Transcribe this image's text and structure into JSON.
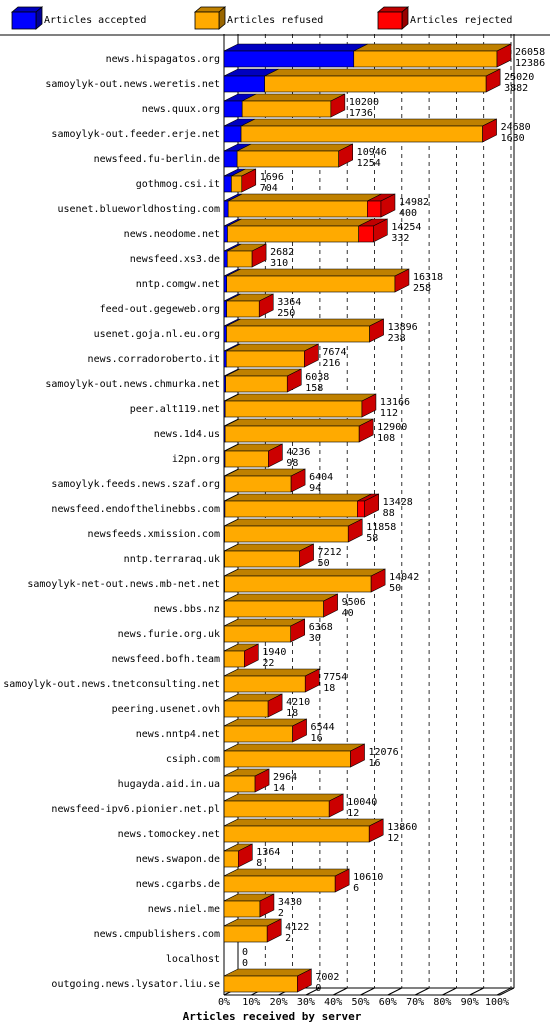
{
  "chart_data": {
    "type": "bar",
    "stacked": true,
    "orientation": "horizontal",
    "title": "Articles received by server",
    "categories": [
      "news.hispagatos.org",
      "samoylyk-out.news.weretis.net",
      "news.quux.org",
      "samoylyk-out.feeder.erje.net",
      "newsfeed.fu-berlin.de",
      "gothmog.csi.it",
      "usenet.blueworldhosting.com",
      "news.neodome.net",
      "newsfeed.xs3.de",
      "nntp.comgw.net",
      "feed-out.gegeweb.org",
      "usenet.goja.nl.eu.org",
      "news.corradoroberto.it",
      "samoylyk-out.news.chmurka.net",
      "peer.alt119.net",
      "news.1d4.us",
      "i2pn.org",
      "samoylyk.feeds.news.szaf.org",
      "newsfeed.endofthelinebbs.com",
      "newsfeeds.xmission.com",
      "nntp.terraraq.uk",
      "samoylyk-net-out.news.mb-net.net",
      "news.bbs.nz",
      "news.furie.org.uk",
      "newsfeed.bofh.team",
      "samoylyk-out.news.tnetconsulting.net",
      "peering.usenet.ovh",
      "news.nntp4.net",
      "csiph.com",
      "hugayda.aid.in.ua",
      "newsfeed-ipv6.pionier.net.pl",
      "news.tomockey.net",
      "news.swapon.de",
      "news.cgarbs.de",
      "news.niel.me",
      "news.cmpublishers.com",
      "localhost",
      "outgoing.news.lysator.liu.se"
    ],
    "totals": [
      26058,
      25020,
      10200,
      24680,
      10946,
      1696,
      14982,
      14254,
      2682,
      16318,
      3364,
      13896,
      7674,
      6038,
      13166,
      12900,
      4236,
      6404,
      13428,
      11858,
      7212,
      14042,
      9506,
      6368,
      1940,
      7754,
      4210,
      6544,
      12076,
      2964,
      10040,
      13860,
      1364,
      10610,
      3430,
      4122,
      0,
      7002
    ],
    "series": [
      {
        "name": "Articles accepted",
        "color": "#0000ff",
        "values": [
          12386,
          3882,
          1736,
          1630,
          1254,
          704,
          400,
          332,
          310,
          258,
          250,
          238,
          216,
          158,
          112,
          108,
          98,
          94,
          88,
          58,
          50,
          50,
          40,
          30,
          22,
          18,
          18,
          16,
          16,
          14,
          12,
          12,
          8,
          6,
          2,
          2,
          0,
          0
        ]
      },
      {
        "name": "Articles refused",
        "color": "#ffaa00",
        "values": [
          13672,
          21138,
          8464,
          23050,
          9692,
          992,
          13282,
          12522,
          2372,
          16060,
          3114,
          13658,
          7458,
          5880,
          13054,
          12792,
          4138,
          6310,
          12640,
          11800,
          7162,
          13992,
          9466,
          6338,
          1918,
          7736,
          4192,
          6528,
          12060,
          2950,
          10028,
          13848,
          1356,
          10604,
          3428,
          4120,
          0,
          7002
        ]
      },
      {
        "name": "Articles rejected",
        "color": "#ff0000",
        "values": [
          0,
          0,
          0,
          0,
          0,
          0,
          1300,
          1400,
          0,
          0,
          0,
          0,
          0,
          0,
          0,
          0,
          0,
          0,
          700,
          0,
          0,
          0,
          0,
          0,
          0,
          0,
          0,
          0,
          0,
          0,
          0,
          0,
          0,
          0,
          0,
          0,
          0,
          0
        ]
      }
    ],
    "xlim": [
      0,
      26058
    ],
    "xticks": [
      {
        "value": 0,
        "label": "0%"
      },
      {
        "value": 2605.8,
        "label": "10%"
      },
      {
        "value": 5211.6,
        "label": "20%"
      },
      {
        "value": 7817.4,
        "label": "30%"
      },
      {
        "value": 10423.2,
        "label": "40%"
      },
      {
        "value": 13029,
        "label": "50%"
      },
      {
        "value": 15634.8,
        "label": "60%"
      },
      {
        "value": 18240.6,
        "label": "70%"
      },
      {
        "value": 20846.4,
        "label": "80%"
      },
      {
        "value": 23452.2,
        "label": "90%"
      },
      {
        "value": 26058,
        "label": "100%"
      }
    ],
    "grid": true
  }
}
